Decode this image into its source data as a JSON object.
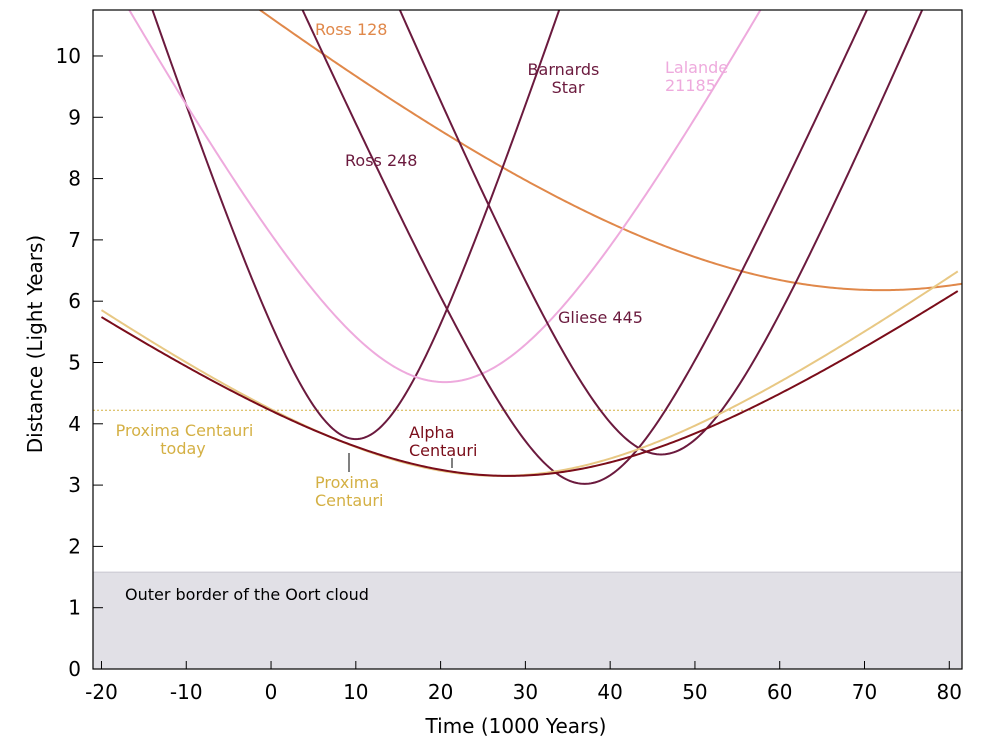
{
  "chart_data": {
    "type": "line",
    "title": "",
    "xlabel": "Time (1000 Years)",
    "ylabel": "Distance (Light Years)",
    "xlim": [
      -21,
      81.5
    ],
    "ylim": [
      0,
      10.75
    ],
    "xticks": [
      -20,
      -10,
      0,
      10,
      20,
      30,
      40,
      50,
      60,
      70,
      80
    ],
    "xtick_labels": [
      "-20",
      "-10",
      "0",
      "10",
      "20",
      "30",
      "40",
      "50",
      "60",
      "70",
      "80"
    ],
    "yticks": [
      0,
      1,
      2,
      3,
      4,
      5,
      6,
      7,
      8,
      9,
      10
    ],
    "ytick_labels": [
      "0",
      "1",
      "2",
      "3",
      "4",
      "5",
      "6",
      "7",
      "8",
      "9",
      "10"
    ],
    "grid": false,
    "oort_cloud": {
      "label": "Outer border of the Oort cloud",
      "upper_bound": 1.58,
      "color": "#e1e0e6"
    },
    "reference_line": {
      "label_lines": [
        "Proxima Centauri",
        "today"
      ],
      "y": 4.22,
      "color": "#d4b044"
    },
    "series": [
      {
        "name": "Ross 128",
        "label_lines": [
          "Ross 128"
        ],
        "color": "#e0884a",
        "min_x": 72,
        "min_y": 6.18,
        "curvature": 0.12
      },
      {
        "name": "Barnards Star",
        "label_lines": [
          "Barnards",
          "Star"
        ],
        "color": "#6b1a3e",
        "min_x": 10,
        "min_y": 3.75,
        "curvature": 0.42
      },
      {
        "name": "Lalande 21185",
        "label_lines": [
          "Lalande",
          "21185"
        ],
        "color": "#eeaadd",
        "min_x": 20.5,
        "min_y": 4.68,
        "curvature": 0.26
      },
      {
        "name": "Ross 248",
        "label_lines": [
          "Ross 248"
        ],
        "color": "#6b1a3e",
        "min_x": 37,
        "min_y": 3.02,
        "curvature": 0.31
      },
      {
        "name": "Gliese 445",
        "label_lines": [
          "Gliese 445"
        ],
        "color": "#6b1a3e",
        "min_x": 46,
        "min_y": 3.5,
        "curvature": 0.33
      },
      {
        "name": "Alpha Centauri",
        "label_lines": [
          "Alpha",
          "Centauri"
        ],
        "color": "#7a0d1a",
        "min_x": 28,
        "min_y": 3.15,
        "curvature": 0.1
      },
      {
        "name": "Proxima Centauri",
        "label_lines": [
          "Proxima",
          "Centauri"
        ],
        "color": "#e8c884",
        "min_x": 27,
        "min_y": 3.15,
        "curvature": 0.105
      }
    ]
  }
}
